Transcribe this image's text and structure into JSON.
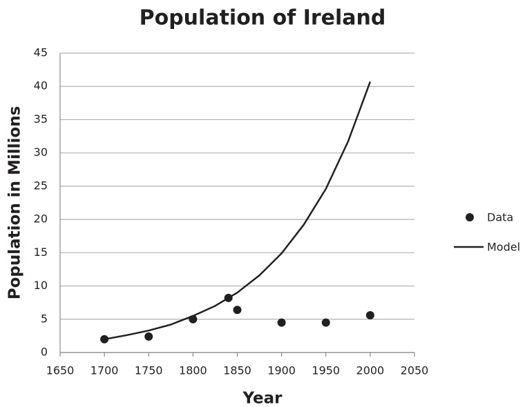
{
  "chart_data": {
    "type": "scatter",
    "title": "Population of Ireland",
    "x_label": "Year",
    "y_label": "Population in Millions",
    "xlim": [
      1650,
      2050
    ],
    "xticks": [
      1650,
      1700,
      1750,
      1800,
      1850,
      1900,
      1950,
      2000,
      2050
    ],
    "ylim": [
      0,
      45
    ],
    "yticks": [
      0,
      5,
      10,
      15,
      20,
      25,
      30,
      35,
      40,
      45
    ],
    "grid": true,
    "legend": "right",
    "series": [
      {
        "name": "Data",
        "type": "scatter",
        "color": "#231f20",
        "x": [
          1700,
          1750,
          1800,
          1840,
          1850,
          1900,
          1950,
          2000
        ],
        "values": [
          2.0,
          2.4,
          5.0,
          8.2,
          6.4,
          4.5,
          4.5,
          5.6
        ]
      },
      {
        "name": "Model",
        "type": "line",
        "color": "#231f20",
        "x": [
          1700,
          1725,
          1750,
          1775,
          1800,
          1825,
          1850,
          1875,
          1900,
          1925,
          1950,
          1975,
          2000
        ],
        "values": [
          2.0,
          2.6,
          3.3,
          4.2,
          5.5,
          7.0,
          9.0,
          11.6,
          14.9,
          19.2,
          24.6,
          31.7,
          40.7
        ]
      }
    ]
  }
}
